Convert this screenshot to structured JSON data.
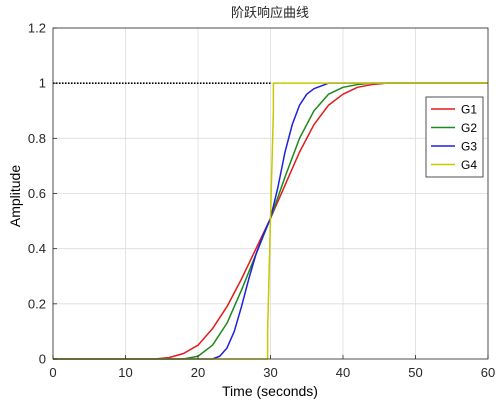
{
  "chart_data": {
    "type": "line",
    "title": "阶跃响应曲线",
    "xlabel": "Time (seconds)",
    "ylabel": "Amplitude",
    "xlim": [
      0,
      60
    ],
    "ylim": [
      0,
      1.2
    ],
    "xticks": [
      0,
      10,
      20,
      30,
      40,
      50,
      60
    ],
    "yticks": [
      0,
      0.2,
      0.4,
      0.6,
      0.8,
      1,
      1.2
    ],
    "grid": true,
    "legend_position": "top-right",
    "reference_line": {
      "y": 1,
      "x_range": [
        0,
        30
      ],
      "color": "#000000",
      "style": "dotted"
    },
    "series": [
      {
        "name": "G1",
        "color": "#e41a1c",
        "x": [
          0,
          14,
          16,
          18,
          20,
          22,
          24,
          26,
          28,
          30,
          32,
          34,
          36,
          38,
          40,
          42,
          44,
          46,
          48,
          50,
          60
        ],
        "y": [
          0,
          0,
          0.005,
          0.02,
          0.05,
          0.11,
          0.19,
          0.29,
          0.4,
          0.51,
          0.63,
          0.75,
          0.85,
          0.92,
          0.96,
          0.985,
          0.995,
          1.0,
          1.0,
          1.0,
          1.0
        ]
      },
      {
        "name": "G2",
        "color": "#1a8a1a",
        "x": [
          0,
          18,
          20,
          22,
          24,
          26,
          28,
          30,
          32,
          34,
          36,
          38,
          40,
          42,
          44,
          46,
          60
        ],
        "y": [
          0,
          0,
          0.01,
          0.05,
          0.13,
          0.25,
          0.38,
          0.51,
          0.66,
          0.8,
          0.9,
          0.96,
          0.985,
          0.995,
          1.0,
          1.0,
          1.0
        ]
      },
      {
        "name": "G3",
        "color": "#1f1fe0",
        "x": [
          0,
          22,
          23,
          24,
          25,
          26,
          27,
          28,
          29,
          30,
          31,
          32,
          33,
          34,
          35,
          36,
          37,
          38,
          40,
          42,
          60
        ],
        "y": [
          0,
          0,
          0.01,
          0.04,
          0.1,
          0.19,
          0.29,
          0.38,
          0.45,
          0.51,
          0.62,
          0.75,
          0.85,
          0.92,
          0.96,
          0.98,
          0.99,
          1.0,
          1.0,
          1.0,
          1.0
        ]
      },
      {
        "name": "G4",
        "color": "#c8c800",
        "x": [
          0,
          29.6,
          29.6,
          30.0,
          30.4,
          30.4,
          60
        ],
        "y": [
          0,
          0,
          0.1,
          0.51,
          0.9,
          1.0,
          1.0
        ]
      }
    ]
  }
}
